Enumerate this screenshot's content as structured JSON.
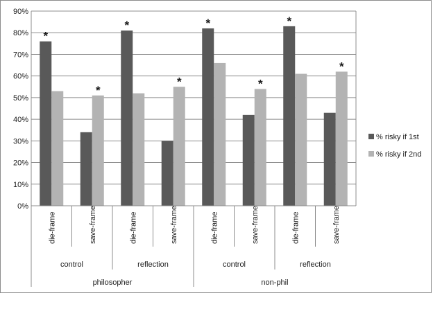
{
  "chart_data": {
    "type": "bar",
    "title": "",
    "xlabel": "",
    "ylabel": "",
    "ylim": [
      0,
      90
    ],
    "yticks": [
      0,
      10,
      20,
      30,
      40,
      50,
      60,
      70,
      80,
      90
    ],
    "ytick_format": "{v}%",
    "grid": "horizontal",
    "legend_position": "right",
    "categories": [
      "die-frame",
      "save-frame",
      "die-frame",
      "save-frame",
      "die-frame",
      "save-frame",
      "die-frame",
      "save-frame"
    ],
    "category_groups_level2": [
      "control",
      "reflection",
      "control",
      "reflection"
    ],
    "category_groups_level1": [
      "philosopher",
      "non-phil"
    ],
    "series": [
      {
        "name": "% risky if 1st",
        "color": "#595959",
        "values": [
          76,
          34,
          81,
          30,
          82,
          42,
          83,
          43
        ]
      },
      {
        "name": "% risky if 2nd",
        "color": "#b3b3b3",
        "values": [
          53,
          51,
          52,
          55,
          66,
          54,
          61,
          62
        ]
      }
    ],
    "annotations": [
      {
        "category_index": 0,
        "series_index": 0,
        "text": "*"
      },
      {
        "category_index": 1,
        "series_index": 1,
        "text": "*"
      },
      {
        "category_index": 2,
        "series_index": 0,
        "text": "*"
      },
      {
        "category_index": 3,
        "series_index": 1,
        "text": "*"
      },
      {
        "category_index": 4,
        "series_index": 0,
        "text": "*"
      },
      {
        "category_index": 5,
        "series_index": 1,
        "text": "*"
      },
      {
        "category_index": 6,
        "series_index": 0,
        "text": "*"
      },
      {
        "category_index": 7,
        "series_index": 1,
        "text": "*"
      }
    ]
  }
}
